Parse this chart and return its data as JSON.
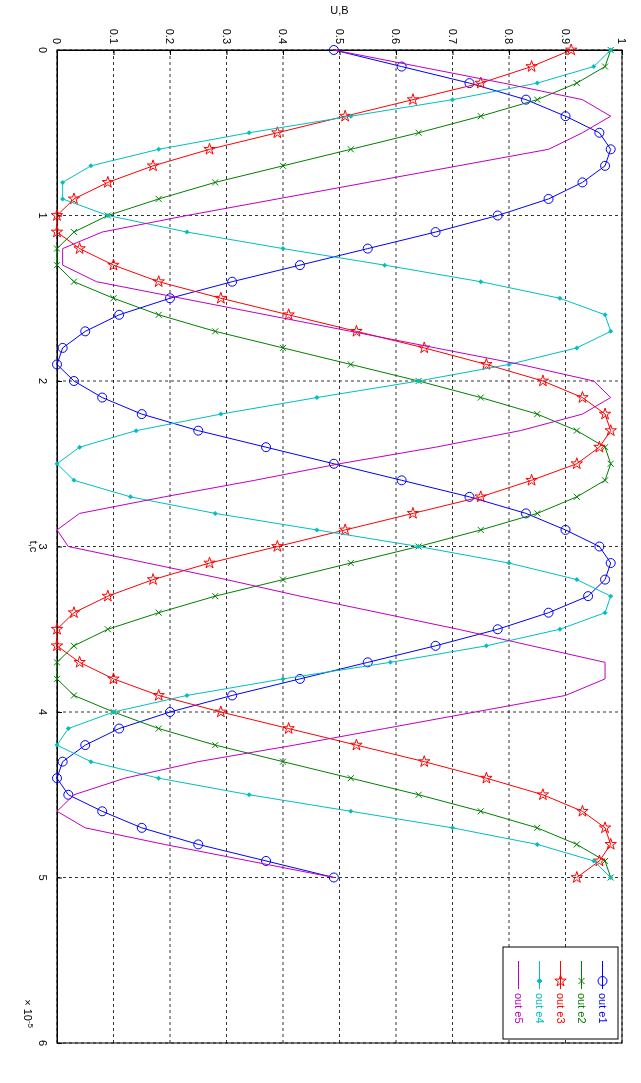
{
  "chart_data": {
    "type": "line",
    "xlabel": "U,B",
    "ylabel": "t,c",
    "annotations": [
      "× 10$^{-5}$"
    ],
    "xlim": [
      0,
      1
    ],
    "xticks": [
      0,
      0.1,
      0.2,
      0.3,
      0.4,
      0.5,
      0.6,
      0.7,
      0.8,
      0.9,
      1
    ],
    "ylim": [
      6,
      0
    ],
    "yticks": [
      0,
      1,
      2,
      3,
      4,
      5,
      6
    ],
    "grid": true,
    "legend": "bottom right",
    "line_style": "solid",
    "series": [
      {
        "name": "out e1",
        "color": "#0000ff",
        "marker": "circle",
        "x": [
          0.49,
          0.61,
          0.73,
          0.83,
          0.9,
          0.96,
          0.98,
          0.97,
          0.93,
          0.87,
          0.78,
          0.67,
          0.55,
          0.43,
          0.31,
          0.2,
          0.11,
          0.05,
          0.01,
          0,
          0.03,
          0.08,
          0.15,
          0.25,
          0.37,
          0.49,
          0.61,
          0.73,
          0.83,
          0.9,
          0.96,
          0.98,
          0.97,
          0.94,
          0.87,
          0.78,
          0.67,
          0.55,
          0.43,
          0.31,
          0.2,
          0.11,
          0.05,
          0.01,
          0,
          0.02,
          0.08,
          0.15,
          0.25,
          0.37,
          0.49
        ],
        "values": [
          0,
          0.1,
          0.2,
          0.3,
          0.4,
          0.5,
          0.6,
          0.7,
          0.8,
          0.9,
          1,
          1.1,
          1.2,
          1.3,
          1.4,
          1.5,
          1.6,
          1.7,
          1.8,
          1.9,
          2,
          2.1,
          2.2,
          2.3,
          2.4,
          2.5,
          2.6,
          2.7,
          2.8,
          2.9,
          3,
          3.1,
          3.2,
          3.3,
          3.4,
          3.5,
          3.6,
          3.7,
          3.8,
          3.9,
          4,
          4.1,
          4.2,
          4.3,
          4.4,
          4.5,
          4.6,
          4.7,
          4.8,
          4.9,
          5
        ]
      },
      {
        "name": "out e2",
        "color": "#008000",
        "marker": "cross",
        "x": [
          0.98,
          0.97,
          0.92,
          0.85,
          0.75,
          0.64,
          0.52,
          0.4,
          0.28,
          0.18,
          0.09,
          0.03,
          0,
          0,
          0.03,
          0.1,
          0.18,
          0.28,
          0.4,
          0.52,
          0.64,
          0.75,
          0.85,
          0.92,
          0.97,
          0.98,
          0.97,
          0.92,
          0.85,
          0.75,
          0.64,
          0.52,
          0.4,
          0.28,
          0.18,
          0.09,
          0.03,
          0,
          0,
          0.03,
          0.1,
          0.18,
          0.28,
          0.4,
          0.52,
          0.64,
          0.75,
          0.85,
          0.92,
          0.97,
          0.98
        ],
        "values": [
          0,
          0.1,
          0.2,
          0.3,
          0.4,
          0.5,
          0.6,
          0.7,
          0.8,
          0.9,
          1,
          1.1,
          1.2,
          1.3,
          1.4,
          1.5,
          1.6,
          1.7,
          1.8,
          1.9,
          2,
          2.1,
          2.2,
          2.3,
          2.4,
          2.5,
          2.6,
          2.7,
          2.8,
          2.9,
          3,
          3.1,
          3.2,
          3.3,
          3.4,
          3.5,
          3.6,
          3.7,
          3.8,
          3.9,
          4,
          4.1,
          4.2,
          4.3,
          4.4,
          4.5,
          4.6,
          4.7,
          4.8,
          4.9,
          5
        ]
      },
      {
        "name": "out e3",
        "color": "#ff0000",
        "marker": "star",
        "x": [
          0.91,
          0.84,
          0.75,
          0.63,
          0.51,
          0.39,
          0.27,
          0.17,
          0.09,
          0.03,
          0,
          0,
          0.04,
          0.1,
          0.18,
          0.29,
          0.41,
          0.53,
          0.65,
          0.76,
          0.86,
          0.93,
          0.97,
          0.98,
          0.96,
          0.92,
          0.84,
          0.75,
          0.63,
          0.51,
          0.39,
          0.27,
          0.17,
          0.09,
          0.03,
          0,
          0,
          0.04,
          0.1,
          0.18,
          0.29,
          0.41,
          0.53,
          0.65,
          0.76,
          0.86,
          0.93,
          0.97,
          0.98,
          0.96,
          0.92
        ],
        "values": [
          0,
          0.1,
          0.2,
          0.3,
          0.4,
          0.5,
          0.6,
          0.7,
          0.8,
          0.9,
          1,
          1.1,
          1.2,
          1.3,
          1.4,
          1.5,
          1.6,
          1.7,
          1.8,
          1.9,
          2,
          2.1,
          2.2,
          2.3,
          2.4,
          2.5,
          2.6,
          2.7,
          2.8,
          2.9,
          3,
          3.1,
          3.2,
          3.3,
          3.4,
          3.5,
          3.6,
          3.7,
          3.8,
          3.9,
          4,
          4.1,
          4.2,
          4.3,
          4.4,
          4.5,
          4.6,
          4.7,
          4.8,
          4.9,
          5
        ]
      },
      {
        "name": "out e4",
        "color": "#00bfbf",
        "marker": "diamond",
        "x": [
          0.98,
          0.95,
          0.85,
          0.7,
          0.52,
          0.34,
          0.18,
          0.06,
          0.01,
          0.01,
          0.09,
          0.23,
          0.4,
          0.58,
          0.75,
          0.89,
          0.97,
          0.98,
          0.92,
          0.8,
          0.64,
          0.46,
          0.29,
          0.14,
          0.04,
          0,
          0.03,
          0.13,
          0.28,
          0.46,
          0.64,
          0.8,
          0.92,
          0.98,
          0.97,
          0.89,
          0.76,
          0.59,
          0.4,
          0.23,
          0.1,
          0.02,
          0,
          0.06,
          0.18,
          0.34,
          0.52,
          0.7,
          0.85,
          0.95,
          0.98
        ],
        "values": [
          0,
          0.1,
          0.2,
          0.3,
          0.4,
          0.5,
          0.6,
          0.7,
          0.8,
          0.9,
          1,
          1.1,
          1.2,
          1.3,
          1.4,
          1.5,
          1.6,
          1.7,
          1.8,
          1.9,
          2,
          2.1,
          2.2,
          2.3,
          2.4,
          2.5,
          2.6,
          2.7,
          2.8,
          2.9,
          3,
          3.1,
          3.2,
          3.3,
          3.4,
          3.5,
          3.6,
          3.7,
          3.8,
          3.9,
          4,
          4.1,
          4.2,
          4.3,
          4.4,
          4.5,
          4.6,
          4.7,
          4.8,
          4.9,
          5
        ]
      },
      {
        "name": "out e5",
        "color": "#bf00bf",
        "marker": "none",
        "x": [
          0.49,
          0.64,
          0.79,
          0.93,
          0.98,
          0.93,
          0.87,
          0.71,
          0.55,
          0.39,
          0.23,
          0.08,
          0.01,
          0.01,
          0.07,
          0.22,
          0.37,
          0.52,
          0.67,
          0.82,
          0.95,
          0.98,
          0.93,
          0.82,
          0.67,
          0.5,
          0.35,
          0.19,
          0.04,
          0,
          0.02,
          0.16,
          0.3,
          0.43,
          0.57,
          0.71,
          0.84,
          0.97,
          0.97,
          0.9,
          0.74,
          0.58,
          0.42,
          0.25,
          0.12,
          0.03,
          0,
          0.05,
          0.19,
          0.34,
          0.49
        ],
        "values": [
          0,
          0.1,
          0.2,
          0.3,
          0.4,
          0.5,
          0.6,
          0.7,
          0.8,
          0.9,
          1,
          1.1,
          1.2,
          1.3,
          1.4,
          1.5,
          1.6,
          1.7,
          1.8,
          1.9,
          2,
          2.1,
          2.2,
          2.3,
          2.4,
          2.5,
          2.6,
          2.7,
          2.8,
          2.9,
          3,
          3.1,
          3.2,
          3.3,
          3.4,
          3.5,
          3.6,
          3.7,
          3.8,
          3.9,
          4,
          4.1,
          4.2,
          4.3,
          4.4,
          4.5,
          4.6,
          4.7,
          4.8,
          4.9,
          5
        ]
      }
    ]
  }
}
